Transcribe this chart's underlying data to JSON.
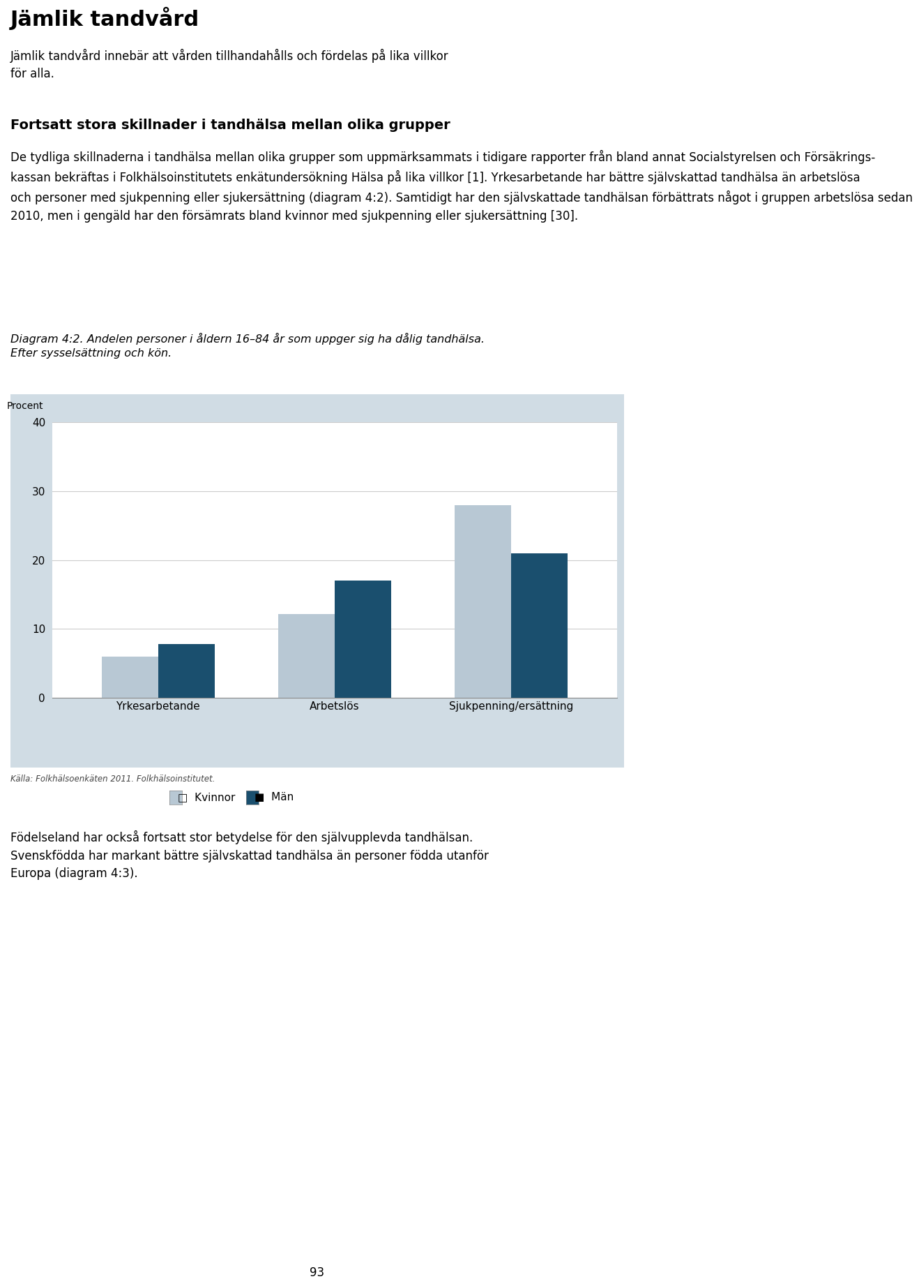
{
  "title_main": "Jämlik tandvård",
  "subtitle_main": "Jämlik tandvård innebär att vården tillhandahålls och fördelas på lika villkor\nför alla.",
  "section_title": "Fortsatt stora skillnader i tandhälsa mellan olika grupper",
  "body_text1_lines": [
    "De tydliga skillnaderna i tandhälsa mellan olika grupper som uppmärksammats i tidigare rapporter från bland annat Socialstyrelsen och Försäkringskassan bekräftas i Folkhälso-",
    "institutets enkätundersökning Hälsa på lika villkor [1]. Yrkesarbetande har bättre självskattad tandhälsa än arbetslösa och personer med sjukpenning eller sjukersättning (diagram",
    "4:2). Samtidigt har den självskattade tandhälsan förbättrats något i gruppen arbetslösa sedan 2010, men i gengäld har den försämrats bland kvinnor med sjukpenning eller",
    "sjukersättning [30]."
  ],
  "diagram_caption_line1": "Diagram 4:2. Andelen personer i åldern 16–84 år som uppger sig ha dålig tand-",
  "diagram_caption_line2": "hälsa. Efter sysselsättning och kön.",
  "ylabel": "Procent",
  "categories": [
    "Yrkesarbetande",
    "Arbetslös",
    "Sjukpenning/ersättning"
  ],
  "kvinnor_values": [
    6.0,
    12.2,
    28.0
  ],
  "man_values": [
    7.8,
    17.0,
    21.0
  ],
  "kvinnor_color": "#b8c8d4",
  "man_color": "#1a4f6e",
  "ylim": [
    0,
    40
  ],
  "yticks": [
    0,
    10,
    20,
    30,
    40
  ],
  "legend_kvinnor": "Kvinnor",
  "legend_man": "Män",
  "source_text": "Källa: Folkhälsoenkäten 2011. Folkhälsoinstitutet.",
  "body_text2_lines": [
    "Födelseland har också fortsatt stor betydelse för den självupplevda tandhälsan.",
    "Svenskfödda har markant bättre självskattad tandhälsa än personer födda utanför",
    "Europa (diagram 4:3)."
  ],
  "page_number": "93",
  "chart_outer_bg_color": "#d0dce4",
  "chart_plot_bg_color": "#ffffff",
  "outer_bg_color": "#ffffff",
  "bar_width": 0.32
}
